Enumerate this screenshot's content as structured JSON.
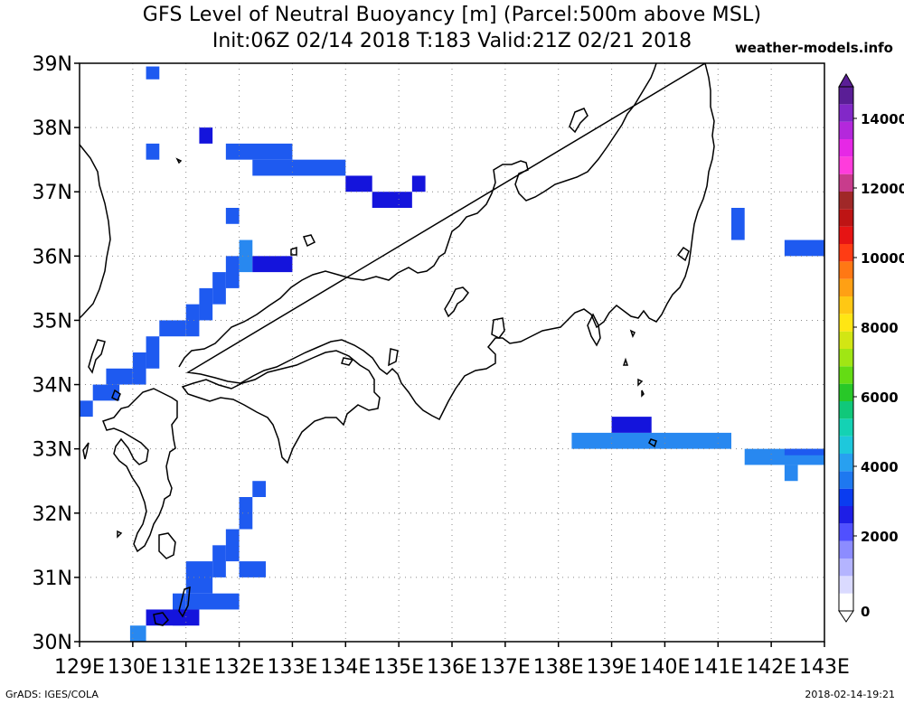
{
  "header": {
    "title_line1": "GFS Level of Neutral Buoyancy [m] (Parcel:500m above MSL)",
    "title_line2": "Init:06Z 02/14 2018 T:183 Valid:21Z 02/21 2018",
    "source": "weather-models.info"
  },
  "footer": {
    "credit": "GrADS: IGES/COLA",
    "timestamp": "2018-02-14-19:21"
  },
  "map": {
    "lon_range": [
      129,
      143
    ],
    "lat_range": [
      30,
      39
    ],
    "lon_ticks": [
      "129E",
      "130E",
      "131E",
      "132E",
      "133E",
      "134E",
      "135E",
      "136E",
      "137E",
      "138E",
      "139E",
      "140E",
      "141E",
      "142E",
      "143E"
    ],
    "lat_ticks": [
      "30N",
      "31N",
      "32N",
      "33N",
      "34N",
      "35N",
      "36N",
      "37N",
      "38N",
      "39N"
    ]
  },
  "colorbar": {
    "labels": [
      "0",
      "2000",
      "4000",
      "6000",
      "8000",
      "10000",
      "12000",
      "14000"
    ],
    "colors": [
      "#ffffff",
      "#dadaff",
      "#b4b4ff",
      "#8c8cff",
      "#5050ff",
      "#1e1ee6",
      "#0a3cf0",
      "#1e78f0",
      "#28a0f0",
      "#1ec8dc",
      "#14d2b4",
      "#10c87a",
      "#28c828",
      "#64dc14",
      "#a0e614",
      "#d2e614",
      "#ffe614",
      "#ffc814",
      "#ffa014",
      "#ff7814",
      "#ff3c14",
      "#e61414",
      "#be1414",
      "#a02828",
      "#c83c8c",
      "#ff3cdc",
      "#e628e6",
      "#b428dc",
      "#8228c8",
      "#5a1e96"
    ]
  },
  "blue_shades": {
    "deep": "#1414dc",
    "mid": "#1e5af0",
    "light": "#2888f0"
  }
}
